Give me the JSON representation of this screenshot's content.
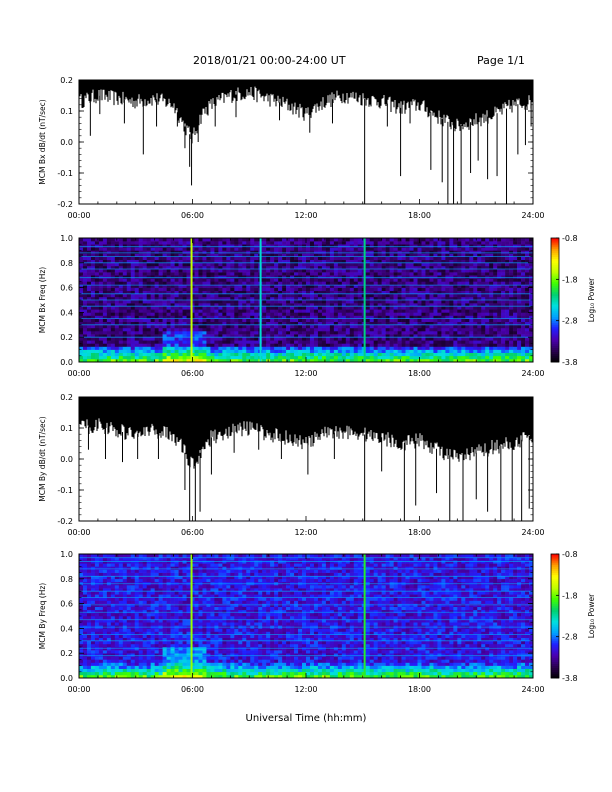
{
  "header": {
    "title": "2018/01/21   00:00-24:00 UT",
    "page": "Page 1/1"
  },
  "xaxis": {
    "label": "Universal Time (hh:mm)",
    "ticks": [
      "00:00",
      "06:00",
      "12:00",
      "18:00",
      "24:00"
    ]
  },
  "colorbar": {
    "label": "Log₁₀ Power",
    "ticks": [
      "-0.8",
      "-1.8",
      "-2.8",
      "-3.8"
    ],
    "range": [
      -3.8,
      -0.8
    ],
    "colors": [
      "#000000",
      "#2a0050",
      "#4b00b0",
      "#2020ff",
      "#00a0ff",
      "#00e0e0",
      "#00d070",
      "#40ff00",
      "#c0ff00",
      "#ffff00",
      "#ffa000",
      "#ff0000"
    ]
  },
  "chart_data": [
    {
      "type": "line",
      "name": "bx-dbdt",
      "ylabel": "MCM Bx dB/dt (nT/sec)",
      "xlim": [
        0,
        24
      ],
      "ylim": [
        -0.2,
        0.2
      ],
      "yticks": [
        "0.2",
        "0.1",
        "0.0",
        "-0.1",
        "-0.2"
      ],
      "upper_envelope": 0.2,
      "noise_floor": [
        [
          0,
          0.13
        ],
        [
          1,
          0.15
        ],
        [
          2,
          0.14
        ],
        [
          3,
          0.13
        ],
        [
          4,
          0.14
        ],
        [
          5,
          0.12
        ],
        [
          5.5,
          0.06
        ],
        [
          6,
          0.01
        ],
        [
          6.5,
          0.09
        ],
        [
          7,
          0.12
        ],
        [
          8,
          0.15
        ],
        [
          9,
          0.16
        ],
        [
          10,
          0.14
        ],
        [
          11,
          0.12
        ],
        [
          12,
          0.09
        ],
        [
          13,
          0.13
        ],
        [
          14,
          0.15
        ],
        [
          15,
          0.14
        ],
        [
          16,
          0.13
        ],
        [
          17,
          0.11
        ],
        [
          18,
          0.12
        ],
        [
          19,
          0.08
        ],
        [
          20,
          0.05
        ],
        [
          21,
          0.07
        ],
        [
          22,
          0.09
        ],
        [
          23,
          0.12
        ],
        [
          24,
          0.13
        ]
      ],
      "spikes": [
        [
          0.6,
          0.02
        ],
        [
          1.1,
          0.09
        ],
        [
          2.4,
          0.06
        ],
        [
          3.4,
          -0.04
        ],
        [
          4.1,
          0.05
        ],
        [
          5.2,
          0.05
        ],
        [
          5.6,
          -0.02
        ],
        [
          5.85,
          -0.08
        ],
        [
          5.95,
          -0.14
        ],
        [
          6.3,
          0.0
        ],
        [
          7.2,
          0.05
        ],
        [
          8.3,
          0.08
        ],
        [
          10.6,
          0.07
        ],
        [
          12.2,
          0.03
        ],
        [
          13.4,
          0.06
        ],
        [
          15.1,
          -0.2
        ],
        [
          16.3,
          0.05
        ],
        [
          17.0,
          -0.11
        ],
        [
          17.5,
          0.06
        ],
        [
          18.6,
          -0.09
        ],
        [
          19.2,
          -0.13
        ],
        [
          19.5,
          -0.2
        ],
        [
          19.8,
          -0.2
        ],
        [
          20.2,
          -0.2
        ],
        [
          20.7,
          -0.1
        ],
        [
          21.1,
          -0.06
        ],
        [
          21.6,
          -0.12
        ],
        [
          22.1,
          -0.11
        ],
        [
          22.6,
          -0.2
        ],
        [
          23.2,
          -0.04
        ],
        [
          23.6,
          -0.01
        ],
        [
          23.9,
          0.05
        ]
      ]
    },
    {
      "type": "heatmap",
      "name": "bx-spectrogram",
      "ylabel": "MCM Bx Freq (Hz)",
      "xlim": [
        0,
        24
      ],
      "ylim": [
        0,
        1
      ],
      "yticks": [
        "1.0",
        "0.8",
        "0.6",
        "0.4",
        "0.2",
        "0.0"
      ],
      "base_log_power": -3.4,
      "low_freq_log_power": -1.8,
      "harmonic_lines_hz": [
        0.2,
        0.3,
        0.35,
        0.45,
        0.5,
        0.55,
        0.62,
        0.68,
        0.75,
        0.8,
        0.85,
        0.88,
        0.93
      ],
      "broadband_events": [
        {
          "time": 5.95,
          "log_power": -1.6
        },
        {
          "time": 9.6,
          "log_power": -2.4
        },
        {
          "time": 15.1,
          "log_power": -2.2
        }
      ]
    },
    {
      "type": "line",
      "name": "by-dbdt",
      "ylabel": "MCM By dB/dt (nT/sec)",
      "xlim": [
        0,
        24
      ],
      "ylim": [
        -0.2,
        0.2
      ],
      "yticks": [
        "0.2",
        "0.1",
        "0.0",
        "-0.1",
        "-0.2"
      ],
      "upper_envelope": 0.2,
      "noise_floor": [
        [
          0,
          0.1
        ],
        [
          1,
          0.11
        ],
        [
          2,
          0.09
        ],
        [
          3,
          0.08
        ],
        [
          4,
          0.09
        ],
        [
          5,
          0.08
        ],
        [
          5.5,
          0.03
        ],
        [
          6,
          -0.02
        ],
        [
          6.5,
          0.03
        ],
        [
          7,
          0.07
        ],
        [
          8,
          0.09
        ],
        [
          9,
          0.1
        ],
        [
          10,
          0.08
        ],
        [
          11,
          0.07
        ],
        [
          12,
          0.05
        ],
        [
          13,
          0.08
        ],
        [
          14,
          0.09
        ],
        [
          15,
          0.08
        ],
        [
          16,
          0.07
        ],
        [
          17,
          0.05
        ],
        [
          18,
          0.06
        ],
        [
          19,
          0.03
        ],
        [
          20,
          0.0
        ],
        [
          21,
          0.02
        ],
        [
          22,
          0.04
        ],
        [
          23,
          0.05
        ],
        [
          24,
          0.08
        ]
      ],
      "spikes": [
        [
          0.5,
          0.03
        ],
        [
          1.4,
          0.0
        ],
        [
          2.3,
          -0.01
        ],
        [
          3.1,
          0.0
        ],
        [
          4.2,
          0.0
        ],
        [
          5.6,
          -0.1
        ],
        [
          5.85,
          -0.2
        ],
        [
          6.15,
          -0.2
        ],
        [
          6.4,
          -0.17
        ],
        [
          7.0,
          -0.05
        ],
        [
          8.2,
          0.02
        ],
        [
          9.5,
          0.03
        ],
        [
          10.7,
          0.0
        ],
        [
          12.1,
          -0.05
        ],
        [
          13.5,
          0.0
        ],
        [
          15.1,
          -0.2
        ],
        [
          16.0,
          -0.04
        ],
        [
          17.2,
          -0.2
        ],
        [
          17.8,
          -0.15
        ],
        [
          18.9,
          -0.11
        ],
        [
          19.6,
          -0.2
        ],
        [
          20.3,
          -0.2
        ],
        [
          21.0,
          -0.13
        ],
        [
          21.6,
          -0.17
        ],
        [
          22.3,
          -0.2
        ],
        [
          22.9,
          -0.2
        ],
        [
          23.4,
          -0.2
        ],
        [
          23.8,
          -0.16
        ]
      ]
    },
    {
      "type": "heatmap",
      "name": "by-spectrogram",
      "ylabel": "MCM By Freq (Hz)",
      "xlim": [
        0,
        24
      ],
      "ylim": [
        0,
        1
      ],
      "yticks": [
        "1.0",
        "0.8",
        "0.6",
        "0.4",
        "0.2",
        "0.0"
      ],
      "base_log_power": -3.1,
      "low_freq_log_power": -1.8,
      "harmonic_lines_hz": [
        0.18,
        0.24,
        0.3,
        0.35,
        0.41,
        0.47,
        0.53,
        0.59,
        0.65,
        0.7,
        0.76,
        0.82,
        0.88,
        0.94,
        0.97
      ],
      "broadband_events": [
        {
          "time": 5.95,
          "log_power": -1.7
        },
        {
          "time": 15.1,
          "log_power": -2.0
        }
      ]
    }
  ]
}
